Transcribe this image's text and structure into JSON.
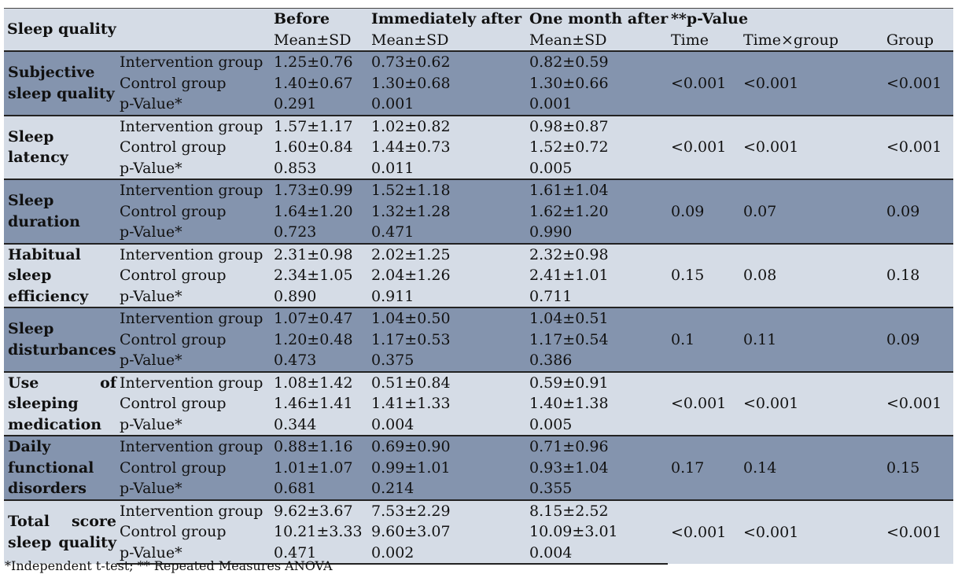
{
  "header": {
    "domain_col": "Sleep quality",
    "before": "Before",
    "immediately": "Immediately after",
    "one_month": "One month after",
    "pvalue": "**p-Value",
    "mean_sd": "Mean±SD",
    "time": "Time",
    "time_group": "Time×group",
    "group": "Group"
  },
  "domains": [
    {
      "name": "Subjective sleep quality",
      "rows": [
        {
          "label": "Intervention group",
          "before": "1.25±0.76",
          "immediately": "0.73±0.62",
          "one_month": "0.82±0.59"
        },
        {
          "label": "Control group",
          "before": "1.40±0.67",
          "immediately": "1.30±0.68",
          "one_month": "1.30±0.66"
        },
        {
          "label": "p-Value*",
          "before": "0.291",
          "immediately": "0.001",
          "one_month": "0.001"
        }
      ],
      "time": "<0.001",
      "time_group": "<0.001",
      "group": "<0.001"
    },
    {
      "name": "Sleep latency",
      "rows": [
        {
          "label": "Intervention group",
          "before": "1.57±1.17",
          "immediately": "1.02±0.82",
          "one_month": "0.98±0.87"
        },
        {
          "label": "Control group",
          "before": "1.60±0.84",
          "immediately": "1.44±0.73",
          "one_month": "1.52±0.72"
        },
        {
          "label": "p-Value*",
          "before": "0.853",
          "immediately": "0.011",
          "one_month": "0.005"
        }
      ],
      "time": "<0.001",
      "time_group": "<0.001",
      "group": "<0.001"
    },
    {
      "name": "Sleep duration",
      "rows": [
        {
          "label": "Intervention group",
          "before": "1.73±0.99",
          "immediately": "1.52±1.18",
          "one_month": "1.61±1.04"
        },
        {
          "label": "Control group",
          "before": "1.64±1.20",
          "immediately": "1.32±1.28",
          "one_month": "1.62±1.20"
        },
        {
          "label": "p-Value*",
          "before": "0.723",
          "immediately": "0.471",
          "one_month": "0.990"
        }
      ],
      "time": "0.09",
      "time_group": "0.07",
      "group": "0.09"
    },
    {
      "name": "Habitual sleep efficiency",
      "rows": [
        {
          "label": "Intervention group",
          "before": "2.31±0.98",
          "immediately": "2.02±1.25",
          "one_month": "2.32±0.98"
        },
        {
          "label": "Control group",
          "before": "2.34±1.05",
          "immediately": "2.04±1.26",
          "one_month": "2.41±1.01"
        },
        {
          "label": "p-Value*",
          "before": "0.890",
          "immediately": "0.911",
          "one_month": "0.711"
        }
      ],
      "time": "0.15",
      "time_group": "0.08",
      "group": "0.18"
    },
    {
      "name": "Sleep disturbances",
      "rows": [
        {
          "label": "Intervention group",
          "before": "1.07±0.47",
          "immediately": "1.04±0.50",
          "one_month": "1.04±0.51"
        },
        {
          "label": "Control group",
          "before": "1.20±0.48",
          "immediately": "1.17±0.53",
          "one_month": "1.17±0.54"
        },
        {
          "label": "p-Value*",
          "before": "0.473",
          "immediately": "0.375",
          "one_month": "0.386"
        }
      ],
      "time": "0.1",
      "time_group": "0.11",
      "group": "0.09"
    },
    {
      "name": "Use of sleeping medication",
      "rows": [
        {
          "label": "Intervention group",
          "before": "1.08±1.42",
          "immediately": "0.51±0.84",
          "one_month": "0.59±0.91"
        },
        {
          "label": "Control group",
          "before": "1.46±1.41",
          "immediately": "1.41±1.33",
          "one_month": "1.40±1.38"
        },
        {
          "label": "p-Value*",
          "before": "0.344",
          "immediately": "0.004",
          "one_month": "0.005"
        }
      ],
      "time": "<0.001",
      "time_group": "<0.001",
      "group": "<0.001"
    },
    {
      "name": "Daily functional disorders",
      "rows": [
        {
          "label": "Intervention group",
          "before": "0.88±1.16",
          "immediately": "0.69±0.90",
          "one_month": "0.71±0.96"
        },
        {
          "label": "Control group",
          "before": "1.01±1.07",
          "immediately": "0.99±1.01",
          "one_month": "0.93±1.04"
        },
        {
          "label": "p-Value*",
          "before": "0.681",
          "immediately": "0.214",
          "one_month": "0.355"
        }
      ],
      "time": "0.17",
      "time_group": "0.14",
      "group": "0.15"
    },
    {
      "name": "Total score sleep quality",
      "rows": [
        {
          "label": "Intervention group",
          "before": "9.62±3.67",
          "immediately": "7.53±2.29",
          "one_month": "8.15±2.52"
        },
        {
          "label": "Control group",
          "before": "10.21±3.33",
          "immediately": "9.60±3.07",
          "one_month": "10.09±3.01"
        },
        {
          "label": "p-Value*",
          "before": "0.471",
          "immediately": "0.002",
          "one_month": "0.004"
        }
      ],
      "time": "<0.001",
      "time_group": "<0.001",
      "group": "<0.001"
    }
  ],
  "footnote": "*Independent t-test; ** Repeated Measures ANOVA",
  "colors": {
    "light_band": "#d5dce6",
    "dark_band": "#8494ae"
  }
}
